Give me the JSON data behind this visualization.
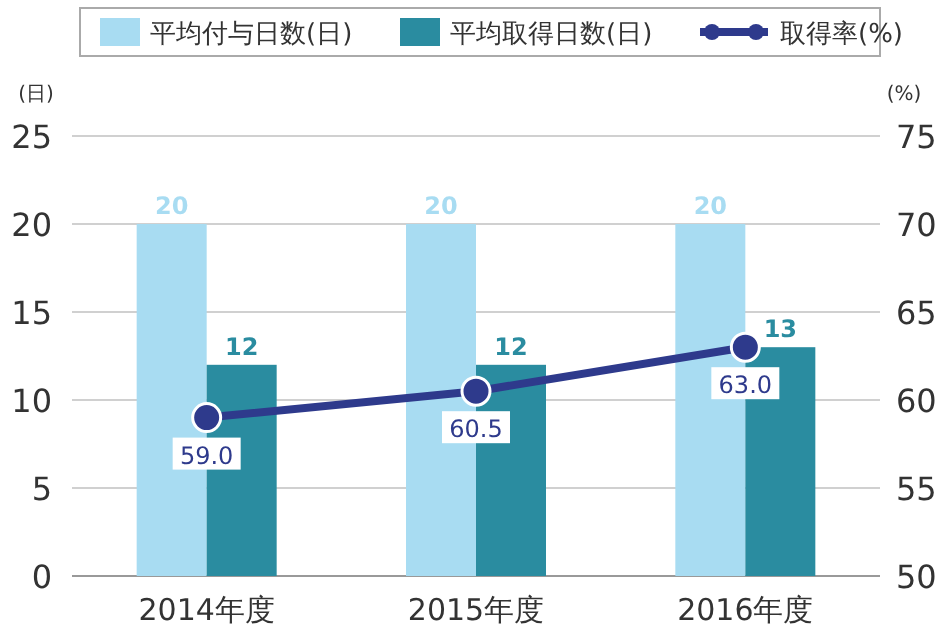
{
  "chart_data": {
    "type": "bar",
    "categories": [
      "2014年度",
      "2015年度",
      "2016年度"
    ],
    "series": [
      {
        "name": "平均付与日数(日)",
        "color": "#a8dcf2",
        "values": [
          20,
          20,
          20
        ]
      },
      {
        "name": "平均取得日数(日)",
        "color": "#2a8ca0",
        "values": [
          12,
          12,
          13
        ]
      },
      {
        "name": "取得率(%)",
        "type": "line",
        "axis": "y2",
        "color": "#2e3a8c",
        "values": [
          59.0,
          60.5,
          63.0
        ],
        "value_labels": [
          "59.0",
          "60.5",
          "63.0"
        ]
      }
    ],
    "ylabel": "(日)",
    "y2label": "(%)",
    "ylim": [
      0,
      25
    ],
    "yticks": [
      0,
      5,
      10,
      15,
      20,
      25
    ],
    "y2lim": [
      50,
      75
    ],
    "y2ticks": [
      50,
      55,
      60,
      65,
      70,
      75
    ],
    "data_labels": true,
    "grid": "y",
    "legend": "top",
    "marker": "circle"
  }
}
